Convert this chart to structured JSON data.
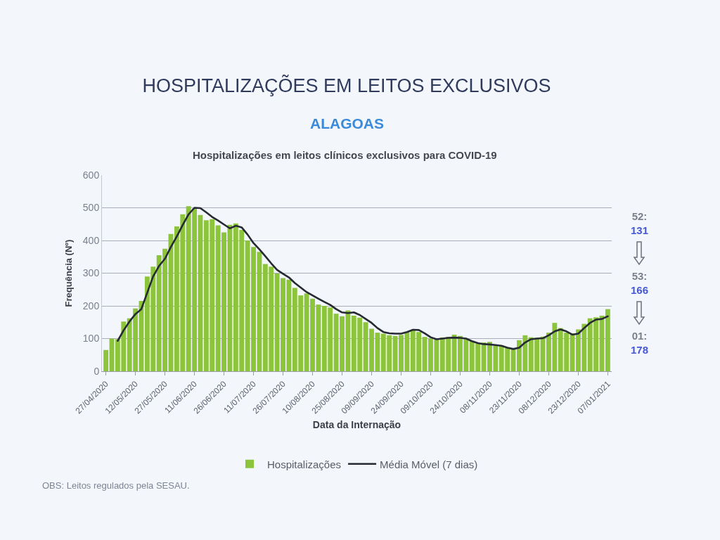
{
  "chart_data": {
    "type": "bar",
    "title": "HOSPITALIZAÇÕES EM LEITOS EXCLUSIVOS",
    "subtitle": "ALAGOAS",
    "xlabel": "Data da Internação",
    "ylabel": "Frequência (Nº)",
    "annotations": [
      "Hospitalizações em leitos clínicos exclusivos para COVID-19",
      "52:\n131",
      "53:\n166",
      "01:\n178",
      "OBS: Leitos regulados pela SESAU."
    ],
    "x": [
      "2020-04-27",
      "2020-04-30",
      "2020-05-03",
      "2020-05-06",
      "2020-05-09",
      "2020-05-12",
      "2020-05-15",
      "2020-05-18",
      "2020-05-21",
      "2020-05-24",
      "2020-05-27",
      "2020-05-30",
      "2020-06-02",
      "2020-06-05",
      "2020-06-08",
      "2020-06-11",
      "2020-06-14",
      "2020-06-17",
      "2020-06-20",
      "2020-06-23",
      "2020-06-26",
      "2020-06-29",
      "2020-07-02",
      "2020-07-05",
      "2020-07-08",
      "2020-07-11",
      "2020-07-14",
      "2020-07-17",
      "2020-07-20",
      "2020-07-23",
      "2020-07-26",
      "2020-07-29",
      "2020-08-01",
      "2020-08-04",
      "2020-08-07",
      "2020-08-10",
      "2020-08-13",
      "2020-08-16",
      "2020-08-19",
      "2020-08-22",
      "2020-08-25",
      "2020-08-28",
      "2020-08-31",
      "2020-09-03",
      "2020-09-06",
      "2020-09-09",
      "2020-09-12",
      "2020-09-15",
      "2020-09-18",
      "2020-09-21",
      "2020-09-24",
      "2020-09-27",
      "2020-09-30",
      "2020-10-03",
      "2020-10-06",
      "2020-10-09",
      "2020-10-12",
      "2020-10-15",
      "2020-10-18",
      "2020-10-21",
      "2020-10-24",
      "2020-10-27",
      "2020-10-30",
      "2020-11-02",
      "2020-11-05",
      "2020-11-08",
      "2020-11-11",
      "2020-11-14",
      "2020-11-17",
      "2020-11-20",
      "2020-11-23",
      "2020-11-26",
      "2020-11-29",
      "2020-12-02",
      "2020-12-05",
      "2020-12-08",
      "2020-12-11",
      "2020-12-14",
      "2020-12-17",
      "2020-12-20",
      "2020-12-23",
      "2020-12-26",
      "2020-12-29",
      "2021-01-01",
      "2021-01-04",
      "2021-01-07"
    ],
    "series": [
      {
        "name": "Hospitalizações",
        "color": "#8cc43c",
        "values": [
          65,
          100,
          98,
          152,
          162,
          192,
          215,
          290,
          320,
          355,
          375,
          420,
          443,
          480,
          505,
          497,
          478,
          462,
          465,
          446,
          425,
          448,
          452,
          432,
          400,
          380,
          365,
          328,
          320,
          299,
          285,
          280,
          255,
          232,
          238,
          222,
          204,
          200,
          195,
          176,
          168,
          186,
          170,
          164,
          150,
          130,
          118,
          115,
          110,
          108,
          111,
          120,
          126,
          120,
          105,
          100,
          97,
          103,
          105,
          112,
          108,
          100,
          93,
          85,
          88,
          90,
          78,
          78,
          72,
          70,
          95,
          110,
          104,
          102,
          106,
          118,
          148,
          132,
          118,
          116,
          128,
          145,
          162,
          165,
          170,
          190
        ]
      },
      {
        "name": "Média Móvel (7 dias)",
        "type": "line",
        "color": "#262a33",
        "x": [
          "2020-05-03",
          "2020-05-06",
          "2020-05-09",
          "2020-05-12",
          "2020-05-15",
          "2020-05-18",
          "2020-05-21",
          "2020-05-24",
          "2020-05-27",
          "2020-05-30",
          "2020-06-02",
          "2020-06-05",
          "2020-06-08",
          "2020-06-11",
          "2020-06-14",
          "2020-06-17",
          "2020-06-20",
          "2020-06-23",
          "2020-06-26",
          "2020-06-29",
          "2020-07-02",
          "2020-07-05",
          "2020-07-08",
          "2020-07-11",
          "2020-07-14",
          "2020-07-17",
          "2020-07-20",
          "2020-07-23",
          "2020-07-26",
          "2020-07-29",
          "2020-08-01",
          "2020-08-04",
          "2020-08-07",
          "2020-08-10",
          "2020-08-13",
          "2020-08-16",
          "2020-08-19",
          "2020-08-22",
          "2020-08-25",
          "2020-08-28",
          "2020-08-31",
          "2020-09-03",
          "2020-09-06",
          "2020-09-09",
          "2020-09-12",
          "2020-09-15",
          "2020-09-18",
          "2020-09-21",
          "2020-09-24",
          "2020-09-27",
          "2020-09-30",
          "2020-10-03",
          "2020-10-06",
          "2020-10-09",
          "2020-10-12",
          "2020-10-15",
          "2020-10-18",
          "2020-10-21",
          "2020-10-24",
          "2020-10-27",
          "2020-10-30",
          "2020-11-02",
          "2020-11-05",
          "2020-11-08",
          "2020-11-11",
          "2020-11-14",
          "2020-11-17",
          "2020-11-20",
          "2020-11-23",
          "2020-11-26",
          "2020-11-29",
          "2020-12-02",
          "2020-12-05",
          "2020-12-08",
          "2020-12-11",
          "2020-12-14",
          "2020-12-17",
          "2020-12-20",
          "2020-12-23",
          "2020-12-26",
          "2020-12-29",
          "2021-01-01",
          "2021-01-04",
          "2021-01-07"
        ],
        "values": [
          93,
          125,
          152,
          175,
          190,
          240,
          290,
          322,
          344,
          380,
          412,
          447,
          480,
          500,
          499,
          486,
          472,
          461,
          449,
          437,
          445,
          440,
          418,
          392,
          373,
          352,
          330,
          310,
          298,
          287,
          270,
          256,
          242,
          232,
          222,
          212,
          203,
          190,
          180,
          178,
          180,
          172,
          160,
          148,
          132,
          120,
          116,
          115,
          115,
          120,
          127,
          126,
          116,
          104,
          98,
          100,
          102,
          103,
          102,
          100,
          92,
          86,
          83,
          82,
          80,
          78,
          72,
          68,
          72,
          88,
          98,
          100,
          101,
          110,
          122,
          128,
          122,
          112,
          115,
          132,
          148,
          158,
          160,
          168
        ]
      }
    ],
    "xlim": [
      "2020-04-25",
      "2021-01-09"
    ],
    "xticks": [
      {
        "value": "2020-04-27",
        "label": "27/04/2020"
      },
      {
        "value": "2020-05-12",
        "label": "12/05/2020"
      },
      {
        "value": "2020-05-27",
        "label": "27/05/2020"
      },
      {
        "value": "2020-06-11",
        "label": "11/06/2020"
      },
      {
        "value": "2020-06-26",
        "label": "26/06/2020"
      },
      {
        "value": "2020-07-11",
        "label": "11/07/2020"
      },
      {
        "value": "2020-07-26",
        "label": "26/07/2020"
      },
      {
        "value": "2020-08-10",
        "label": "10/08/2020"
      },
      {
        "value": "2020-08-25",
        "label": "25/08/2020"
      },
      {
        "value": "2020-09-09",
        "label": "09/09/2020"
      },
      {
        "value": "2020-09-24",
        "label": "24/09/2020"
      },
      {
        "value": "2020-10-09",
        "label": "09/10/2020"
      },
      {
        "value": "2020-10-24",
        "label": "24/10/2020"
      },
      {
        "value": "2020-11-08",
        "label": "08/11/2020"
      },
      {
        "value": "2020-11-23",
        "label": "23/11/2020"
      },
      {
        "value": "2020-12-08",
        "label": "08/12/2020"
      },
      {
        "value": "2020-12-23",
        "label": "23/12/2020"
      },
      {
        "value": "2021-01-07",
        "label": "07/01/2021"
      }
    ],
    "ylim": [
      0,
      600
    ],
    "yticks": [
      0,
      100,
      200,
      300,
      400,
      500,
      600
    ],
    "grid": "y",
    "legend": "bottom"
  }
}
